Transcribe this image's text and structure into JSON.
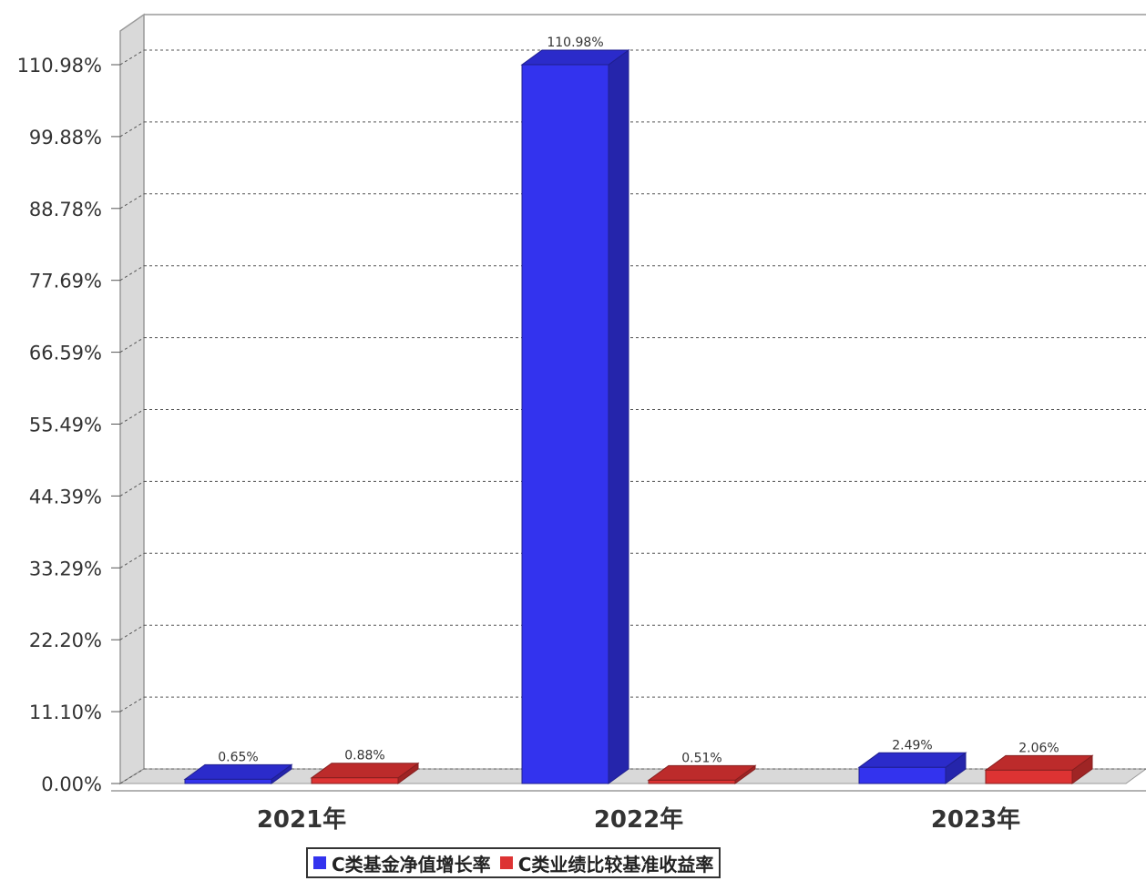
{
  "chart_data": {
    "type": "bar",
    "categories": [
      "2021年",
      "2022年",
      "2023年"
    ],
    "series": [
      {
        "name": "C类基金净值增长率",
        "color": "#3333ee",
        "values": [
          0.65,
          110.98,
          2.49
        ],
        "labels": [
          "0.65%",
          "110.98%",
          "2.49%"
        ]
      },
      {
        "name": "C类业绩比较基准收益率",
        "color": "#dd3333",
        "values": [
          0.88,
          0.51,
          2.06
        ],
        "labels": [
          "0.88%",
          "0.51%",
          "2.06%"
        ]
      }
    ],
    "yticks": [
      "0.00%",
      "11.10%",
      "22.20%",
      "33.29%",
      "44.39%",
      "55.49%",
      "66.59%",
      "77.69%",
      "88.78%",
      "99.88%",
      "110.98%"
    ],
    "ylim": [
      0,
      110.98
    ],
    "grid": true,
    "legend": "bottom",
    "style": "3d"
  }
}
